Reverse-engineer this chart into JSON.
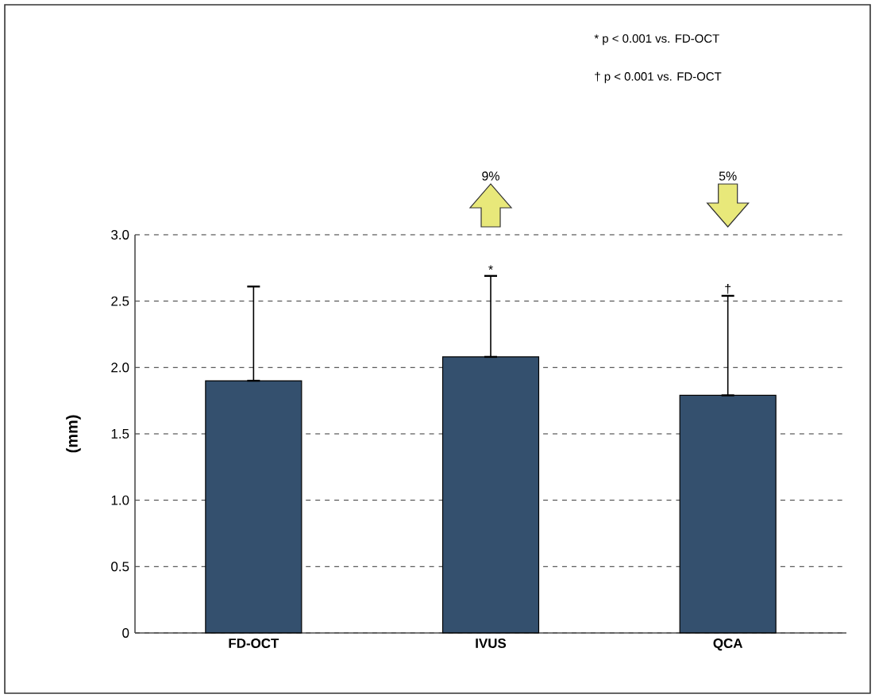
{
  "chart_data": {
    "type": "bar",
    "ylabel": "(mm)",
    "categories": [
      "FD-OCT",
      "IVUS",
      "QCA"
    ],
    "series": [
      {
        "color": "#34506e",
        "values": [
          1.9,
          2.08,
          1.79
        ],
        "errors": [
          [
            1.9,
            2.61
          ],
          [
            2.08,
            2.69
          ],
          [
            1.79,
            2.54
          ]
        ]
      }
    ],
    "ylim": [
      0,
      3
    ],
    "yticks": [
      0,
      0.5,
      {
        "value": 1,
        "label": "1.0"
      },
      1.5,
      {
        "value": 2,
        "label": "2.0"
      },
      2.5,
      {
        "value": 3,
        "label": "3.0"
      }
    ],
    "grid": "y",
    "annotations": [
      "* p < 0.001 vs. FD-OCT",
      "† p < 0.001 vs. FD-OCT",
      "9%",
      "5%",
      {
        "text": "*",
        "x": "IVUS",
        "y": 2.69
      },
      {
        "text": "†",
        "x": "QCA",
        "y": 2.54
      }
    ]
  }
}
